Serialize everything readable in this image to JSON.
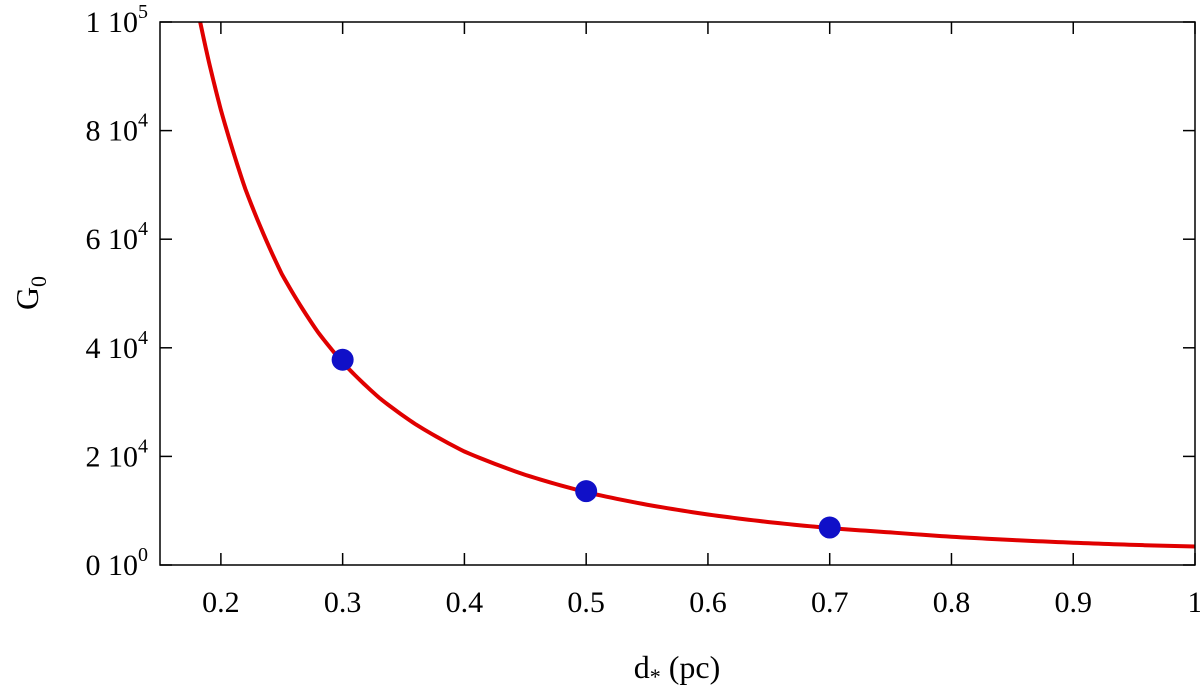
{
  "chart_data": {
    "type": "line",
    "xlabel": "d* (pc)",
    "xlabel_main": "d",
    "xlabel_sub": "*",
    "xlabel_unit": " (pc)",
    "ylabel": "G0",
    "ylabel_main": "G",
    "ylabel_sub": "0",
    "xlim": [
      0.15,
      1.0
    ],
    "ylim": [
      0,
      100000
    ],
    "x_ticks": [
      {
        "value": 0.2,
        "label": "0.2"
      },
      {
        "value": 0.3,
        "label": "0.3"
      },
      {
        "value": 0.4,
        "label": "0.4"
      },
      {
        "value": 0.5,
        "label": "0.5"
      },
      {
        "value": 0.6,
        "label": "0.6"
      },
      {
        "value": 0.7,
        "label": "0.7"
      },
      {
        "value": 0.8,
        "label": "0.8"
      },
      {
        "value": 0.9,
        "label": "0.9"
      },
      {
        "value": 1.0,
        "label": "1"
      }
    ],
    "y_ticks": [
      {
        "value": 0,
        "mantissa": "0 10",
        "exponent": "0"
      },
      {
        "value": 20000,
        "mantissa": "2 10",
        "exponent": "4"
      },
      {
        "value": 40000,
        "mantissa": "4 10",
        "exponent": "4"
      },
      {
        "value": 60000,
        "mantissa": "6 10",
        "exponent": "4"
      },
      {
        "value": 80000,
        "mantissa": "8 10",
        "exponent": "4"
      },
      {
        "value": 100000,
        "mantissa": "1 10",
        "exponent": "5"
      }
    ],
    "series": [
      {
        "kind": "curve",
        "color": "#e00000",
        "x": [
          0.183,
          0.19,
          0.2,
          0.22,
          0.25,
          0.28,
          0.3,
          0.33,
          0.36,
          0.4,
          0.45,
          0.5,
          0.55,
          0.6,
          0.65,
          0.7,
          0.75,
          0.8,
          0.85,
          0.9,
          0.95,
          1.0
        ],
        "y": [
          100000,
          92800,
          83800,
          69300,
          53600,
          42800,
          37300,
          30800,
          25900,
          20900,
          16600,
          13400,
          11100,
          9300,
          7900,
          6800,
          6000,
          5200,
          4600,
          4100,
          3700,
          3400
        ]
      },
      {
        "kind": "points",
        "color": "#1010c8",
        "x": [
          0.3,
          0.5,
          0.7
        ],
        "y": [
          37800,
          13600,
          6900
        ]
      }
    ],
    "grid": false,
    "legend": "none"
  }
}
